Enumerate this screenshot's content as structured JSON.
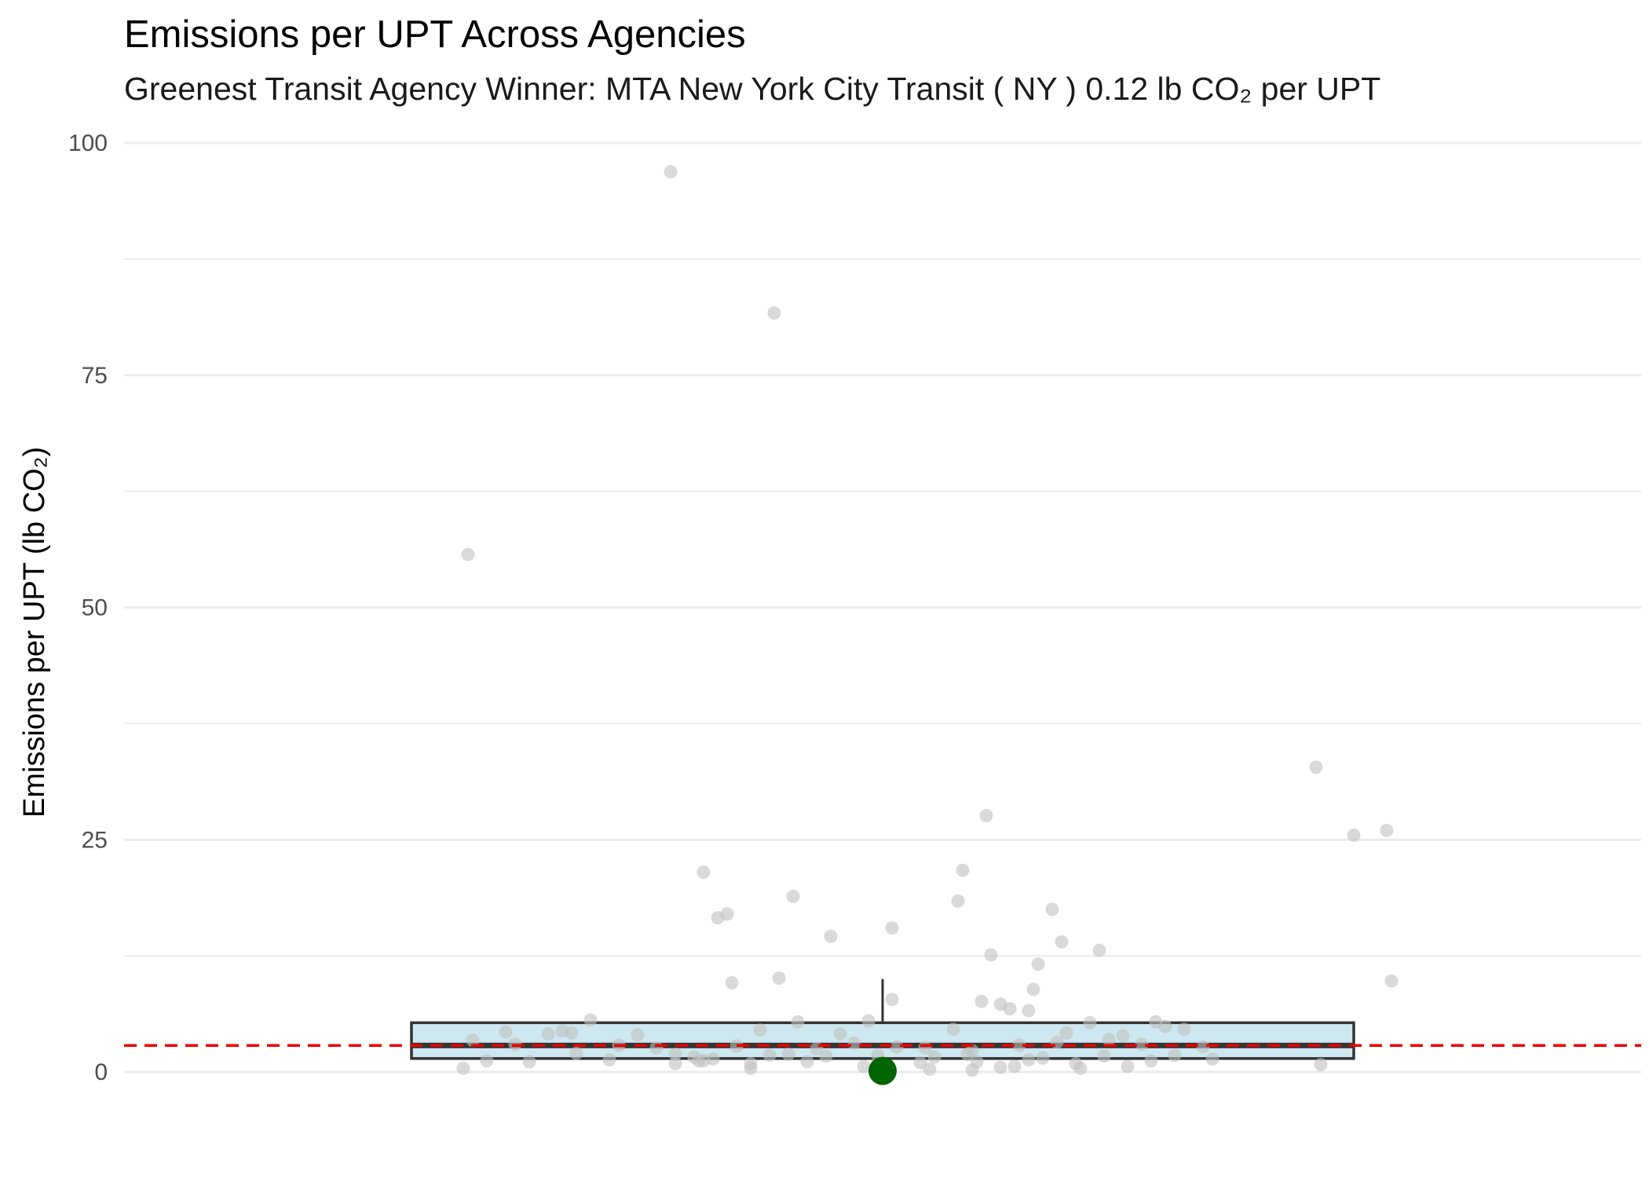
{
  "chart_data": {
    "type": "box",
    "title": "Emissions per UPT Across Agencies",
    "subtitle": "Greenest Transit Agency Winner: MTA New York City Transit ( NY ) 0.12 lb CO₂ per UPT",
    "xlabel": "",
    "ylabel": "Emissions per UPT (lb CO₂)",
    "ylim": [
      -4.2,
      100
    ],
    "yticks": [
      0,
      25,
      50,
      75,
      100
    ],
    "grid": true,
    "box": {
      "q1": 1.45,
      "median": 2.85,
      "q3": 5.3,
      "whisker_low": 0.12,
      "whisker_high": 10.0
    },
    "reference_line": {
      "value": 2.85,
      "style": "dashed",
      "color": "#ee0000"
    },
    "highlight": {
      "label": "MTA New York City Transit ( NY )",
      "value": 0.12,
      "color": "#006400"
    },
    "colors": {
      "box_fill": "#cde8f0",
      "box_stroke": "#333333",
      "points": "#bfbfbf",
      "grid": "#ebebeb"
    },
    "points": [
      [
        -0.45,
        96.9
      ],
      [
        -0.23,
        81.7
      ],
      [
        -0.88,
        55.7
      ],
      [
        0.92,
        32.8
      ],
      [
        1.07,
        26.0
      ],
      [
        1.0,
        25.5
      ],
      [
        0.22,
        27.6
      ],
      [
        0.17,
        21.7
      ],
      [
        -0.38,
        21.5
      ],
      [
        0.16,
        18.4
      ],
      [
        -0.33,
        17.0
      ],
      [
        -0.35,
        16.6
      ],
      [
        -0.19,
        18.9
      ],
      [
        0.02,
        15.5
      ],
      [
        -0.11,
        14.6
      ],
      [
        0.36,
        17.5
      ],
      [
        0.38,
        14.0
      ],
      [
        0.46,
        13.1
      ],
      [
        0.23,
        12.6
      ],
      [
        0.33,
        11.6
      ],
      [
        -0.22,
        10.1
      ],
      [
        -0.32,
        9.6
      ],
      [
        1.08,
        9.8
      ],
      [
        0.32,
        8.9
      ],
      [
        0.02,
        7.8
      ],
      [
        0.21,
        7.6
      ],
      [
        0.25,
        7.3
      ],
      [
        0.27,
        6.8
      ],
      [
        0.31,
        6.6
      ],
      [
        -0.62,
        5.6
      ],
      [
        -0.68,
        4.4
      ],
      [
        -0.8,
        4.3
      ],
      [
        -0.66,
        4.2
      ],
      [
        -0.71,
        4.1
      ],
      [
        -0.52,
        4.0
      ],
      [
        -0.18,
        5.4
      ],
      [
        -0.03,
        5.5
      ],
      [
        0.15,
        4.6
      ],
      [
        0.44,
        5.3
      ],
      [
        0.58,
        5.4
      ],
      [
        0.6,
        4.9
      ],
      [
        0.64,
        4.6
      ],
      [
        -0.26,
        4.5
      ],
      [
        -0.09,
        4.1
      ],
      [
        0.39,
        4.2
      ],
      [
        0.51,
        3.9
      ],
      [
        0.48,
        3.5
      ],
      [
        -0.87,
        3.4
      ],
      [
        -0.78,
        3.0
      ],
      [
        -0.56,
        2.9
      ],
      [
        -0.48,
        2.6
      ],
      [
        -0.31,
        2.8
      ],
      [
        -0.14,
        2.5
      ],
      [
        -0.06,
        3.1
      ],
      [
        0.03,
        2.7
      ],
      [
        0.09,
        2.6
      ],
      [
        0.19,
        2.3
      ],
      [
        0.29,
        2.9
      ],
      [
        0.37,
        3.2
      ],
      [
        0.55,
        3.0
      ],
      [
        0.68,
        2.7
      ],
      [
        -0.65,
        2.0
      ],
      [
        -0.44,
        1.9
      ],
      [
        -0.4,
        1.6
      ],
      [
        -0.24,
        1.8
      ],
      [
        -0.2,
        1.9
      ],
      [
        -0.12,
        1.7
      ],
      [
        -0.01,
        1.8
      ],
      [
        0.11,
        1.6
      ],
      [
        0.18,
        1.9
      ],
      [
        0.34,
        1.5
      ],
      [
        0.47,
        1.7
      ],
      [
        0.62,
        1.8
      ],
      [
        -0.84,
        1.2
      ],
      [
        -0.75,
        1.1
      ],
      [
        -0.58,
        1.3
      ],
      [
        -0.39,
        1.2
      ],
      [
        -0.28,
        0.9
      ],
      [
        -0.16,
        1.1
      ],
      [
        0.08,
        1.0
      ],
      [
        0.2,
        1.1
      ],
      [
        0.31,
        1.3
      ],
      [
        0.41,
        0.9
      ],
      [
        0.57,
        1.2
      ],
      [
        0.7,
        1.4
      ],
      [
        -0.89,
        0.4
      ],
      [
        -0.28,
        0.4
      ],
      [
        -0.04,
        0.6
      ],
      [
        -0.36,
        1.4
      ],
      [
        0.25,
        0.5
      ],
      [
        0.28,
        0.6
      ],
      [
        -0.38,
        1.2
      ],
      [
        -0.44,
        0.9
      ],
      [
        0.52,
        0.6
      ],
      [
        0.93,
        0.8
      ],
      [
        0.1,
        0.3
      ],
      [
        0.42,
        0.4
      ],
      [
        0.19,
        0.2
      ],
      [
        -0.01,
        0.4
      ]
    ]
  }
}
